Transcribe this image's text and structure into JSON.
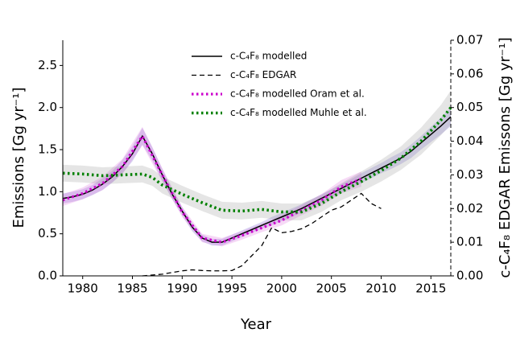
{
  "chart_data": {
    "type": "line",
    "xlabel": "Year",
    "ylabel": "Emissions [Gg yr⁻¹]",
    "y2label": "c-C₄F₈ EDGAR Emissons [Gg yr⁻¹]",
    "xlim": [
      1978,
      2017
    ],
    "xticks": [
      1980,
      1985,
      1990,
      1995,
      2000,
      2005,
      2010,
      2015
    ],
    "ylim": [
      0,
      2.8
    ],
    "yticks": [
      {
        "value": 0,
        "label": "0.0"
      },
      0.5,
      {
        "value": 1,
        "label": "1.0"
      },
      1.5,
      {
        "value": 2,
        "label": "2.0"
      },
      2.5
    ],
    "y2lim": [
      0,
      0.07
    ],
    "y2ticks": [
      {
        "value": 0,
        "label": "0.00"
      },
      0.01,
      0.02,
      0.03,
      0.04,
      0.05,
      0.06,
      0.07
    ],
    "legend": "upper center",
    "series": [
      {
        "name": "c-C₄F₈ modelled",
        "color": "#000000",
        "style": "solid",
        "band_color": "#6a5acd",
        "x": [
          1978,
          1979,
          1980,
          1981,
          1982,
          1983,
          1984,
          1985,
          1986,
          1987,
          1988,
          1989,
          1990,
          1991,
          1992,
          1993,
          1994,
          1995,
          1996,
          1997,
          1998,
          1999,
          2000,
          2001,
          2002,
          2003,
          2004,
          2005,
          2006,
          2007,
          2008,
          2009,
          2010,
          2011,
          2012,
          2013,
          2014,
          2015,
          2016,
          2017
        ],
        "values": [
          0.92,
          0.94,
          0.97,
          1.02,
          1.09,
          1.18,
          1.3,
          1.45,
          1.66,
          1.45,
          1.2,
          0.97,
          0.77,
          0.58,
          0.45,
          0.4,
          0.4,
          0.45,
          0.5,
          0.55,
          0.6,
          0.65,
          0.7,
          0.75,
          0.8,
          0.86,
          0.92,
          0.98,
          1.04,
          1.1,
          1.16,
          1.22,
          1.28,
          1.34,
          1.4,
          1.48,
          1.58,
          1.68,
          1.78,
          1.89
        ],
        "uncertainty": [
          0.06,
          0.06,
          0.06,
          0.06,
          0.07,
          0.07,
          0.08,
          0.09,
          0.1,
          0.08,
          0.07,
          0.06,
          0.05,
          0.05,
          0.04,
          0.04,
          0.04,
          0.04,
          0.04,
          0.04,
          0.04,
          0.05,
          0.05,
          0.05,
          0.05,
          0.05,
          0.05,
          0.05,
          0.05,
          0.05,
          0.06,
          0.06,
          0.06,
          0.07,
          0.07,
          0.08,
          0.08,
          0.09,
          0.1,
          0.11
        ]
      },
      {
        "name": "c-C₄F₈ EDGAR",
        "color": "#000000",
        "style": "dashed",
        "axis": "y2",
        "x": [
          1986,
          1988,
          1989,
          1990,
          1991,
          1992,
          1993,
          1994,
          1995,
          1996,
          1997,
          1998,
          1999,
          2000,
          2001,
          2002,
          2003,
          2004,
          2005,
          2006,
          2007,
          2008,
          2009,
          2010
        ],
        "values": [
          0,
          0.0005,
          0.001,
          0.0015,
          0.0018,
          0.0016,
          0.0015,
          0.0015,
          0.0016,
          0.003,
          0.006,
          0.009,
          0.0143,
          0.0128,
          0.0132,
          0.014,
          0.0155,
          0.0175,
          0.0195,
          0.0205,
          0.0225,
          0.0245,
          0.0215,
          0.02
        ]
      },
      {
        "name": "c-C₄F₈ modelled Oram et al.",
        "color": "#cc00cc",
        "style": "dotted",
        "band_color": "#dd66dd",
        "x": [
          1978,
          1980,
          1982,
          1984,
          1986,
          1988,
          1990,
          1992,
          1994,
          1996,
          1998,
          2000,
          2002,
          2004,
          2006,
          2008
        ],
        "values": [
          0.9,
          0.98,
          1.1,
          1.3,
          1.66,
          1.2,
          0.76,
          0.45,
          0.4,
          0.48,
          0.57,
          0.66,
          0.78,
          0.9,
          1.06,
          1.15
        ],
        "uncertainty": [
          0.07,
          0.07,
          0.08,
          0.09,
          0.11,
          0.08,
          0.06,
          0.05,
          0.05,
          0.05,
          0.05,
          0.06,
          0.06,
          0.07,
          0.08,
          0.09
        ]
      },
      {
        "name": "c-C₄F₈ modelled Muhle et al.",
        "color": "#008000",
        "style": "dotted",
        "band_color": "#999999",
        "x": [
          1978,
          1980,
          1982,
          1984,
          1986,
          1987,
          1988,
          1990,
          1992,
          1994,
          1996,
          1998,
          2000,
          2002,
          2004,
          2006,
          2008,
          2010,
          2012,
          2014,
          2016,
          2017
        ],
        "values": [
          1.22,
          1.21,
          1.19,
          1.2,
          1.21,
          1.17,
          1.08,
          0.97,
          0.87,
          0.78,
          0.77,
          0.79,
          0.76,
          0.76,
          0.86,
          1.0,
          1.12,
          1.25,
          1.4,
          1.6,
          1.85,
          2.0
        ],
        "uncertainty": [
          0.1,
          0.1,
          0.1,
          0.1,
          0.1,
          0.1,
          0.1,
          0.1,
          0.1,
          0.1,
          0.1,
          0.1,
          0.1,
          0.1,
          0.1,
          0.1,
          0.12,
          0.13,
          0.14,
          0.16,
          0.18,
          0.2
        ]
      }
    ]
  }
}
